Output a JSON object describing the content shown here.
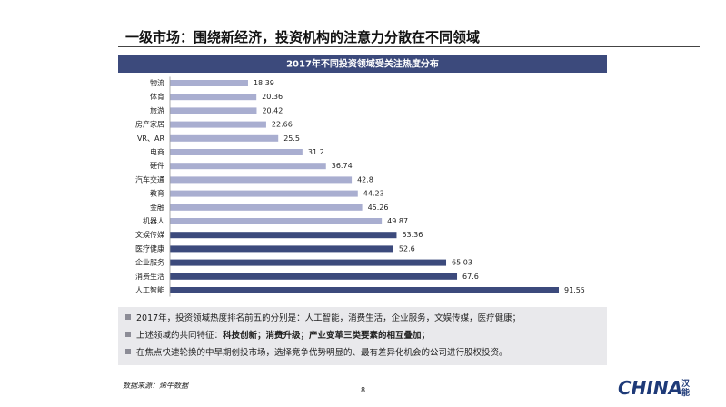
{
  "header": {
    "title": "一级市场：围绕新经济，投资机构的注意力分散在不同领域"
  },
  "chart_data": {
    "type": "bar",
    "orientation": "horizontal",
    "title": "2017年不同投资领域受关注热度分布",
    "categories": [
      "物流",
      "体育",
      "旅游",
      "房产家居",
      "VR、AR",
      "电商",
      "硬件",
      "汽车交通",
      "教育",
      "金融",
      "机器人",
      "文娱传媒",
      "医疗健康",
      "企业服务",
      "消费生活",
      "人工智能"
    ],
    "values": [
      18.39,
      20.36,
      20.42,
      22.66,
      25.5,
      31.2,
      36.74,
      42.8,
      44.23,
      45.26,
      49.87,
      53.36,
      52.6,
      65.03,
      67.6,
      91.55
    ],
    "colors": [
      "#a9aed0",
      "#a9aed0",
      "#a9aed0",
      "#a9aed0",
      "#a9aed0",
      "#a9aed0",
      "#a9aed0",
      "#a9aed0",
      "#a9aed0",
      "#a9aed0",
      "#a9aed0",
      "#3c4a7c",
      "#3c4a7c",
      "#3c4a7c",
      "#3c4a7c",
      "#3c4a7c"
    ],
    "title_bg": "#3c4a7c"
  },
  "notes": [
    {
      "text": "2017年，投资领域热度排名前五的分别是：人工智能，消费生活，企业服务，文娱传媒，医疗健康；"
    },
    {
      "text": "上述领域的共同特征：",
      "bold": "科技创新；消费升级；产业变革三类要素的相互叠加；"
    },
    {
      "text": "在焦点快速轮换的中早期创投市场，选择竞争优势明显的、最有差异化机会的公司进行股权投资。"
    }
  ],
  "footer": {
    "source": "数据来源：烯牛数据",
    "page": "8"
  },
  "logo": {
    "text": "CHINA",
    "cn": "汉能"
  }
}
